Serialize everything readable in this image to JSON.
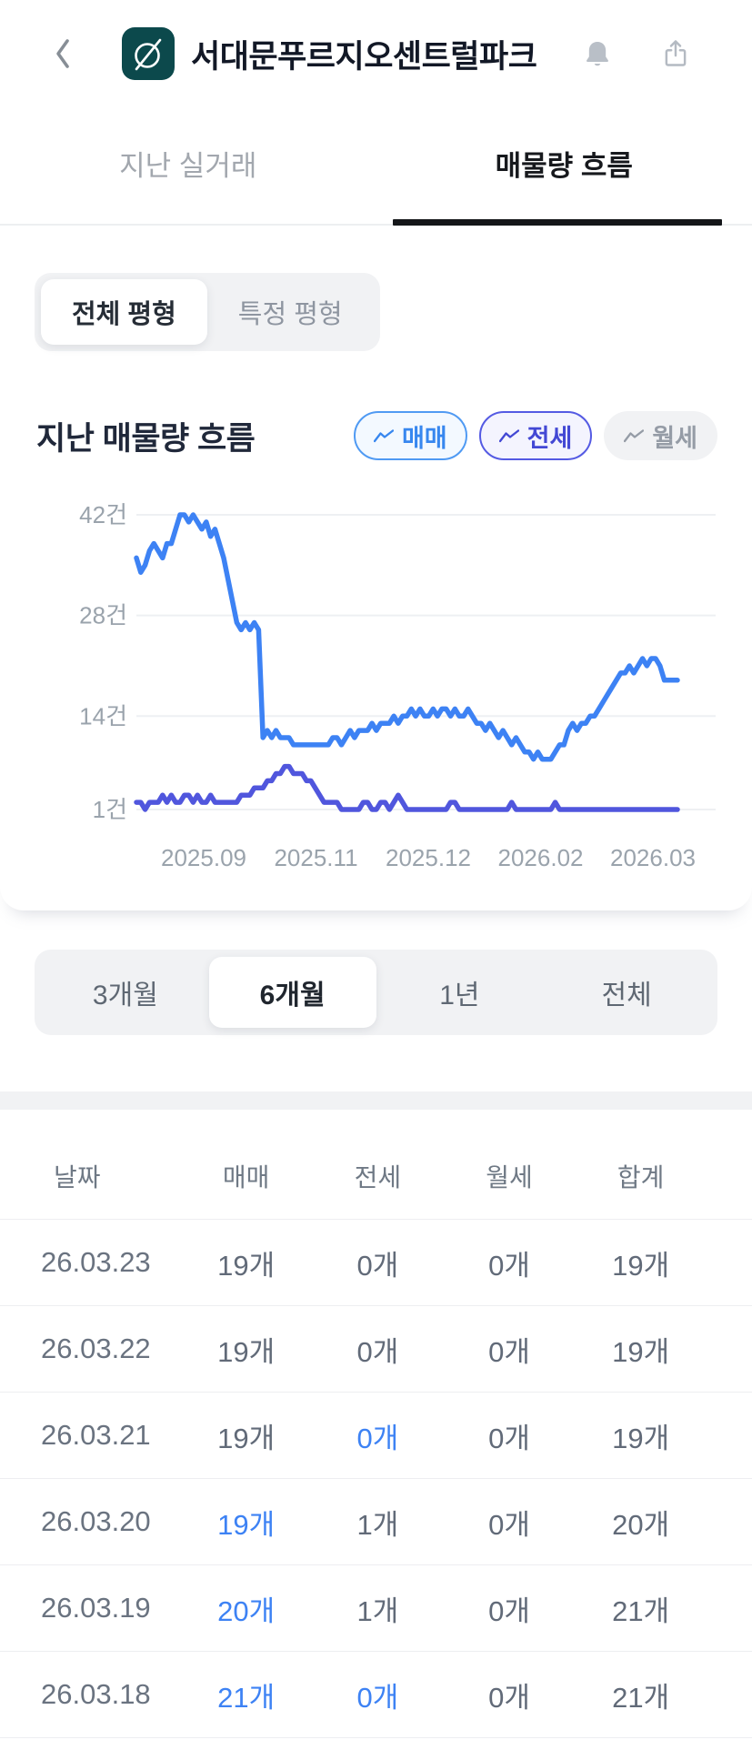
{
  "header": {
    "title": "서대문푸르지오센트럴파크"
  },
  "tabs": [
    {
      "label": "지난 실거래",
      "active": false
    },
    {
      "label": "매물량 흐름",
      "active": true
    }
  ],
  "size_filter": {
    "options": [
      {
        "label": "전체 평형",
        "selected": true
      },
      {
        "label": "특정 평형",
        "selected": false
      }
    ]
  },
  "section": {
    "title": "지난 매물량 흐름"
  },
  "legend": [
    {
      "label": "매매",
      "color": "#3787ef",
      "active": true
    },
    {
      "label": "전세",
      "color": "#4348d4",
      "active": true
    },
    {
      "label": "월세",
      "color": "#959ca6",
      "active": false
    }
  ],
  "chart_data": {
    "type": "line",
    "title": "지난 매물량 흐름",
    "unit": "건",
    "grid": "horizontal",
    "legend_position": "top-right",
    "ylim": [
      1,
      44
    ],
    "y_ticks": [
      42,
      28,
      14,
      1
    ],
    "y_tick_labels": [
      "42건",
      "28건",
      "14건",
      "1건"
    ],
    "x_tick_labels": [
      "2025.09",
      "2025.11",
      "2025.12",
      "2026.02",
      "2026.03"
    ],
    "series": [
      {
        "name": "전세",
        "color": "#5056dd",
        "values": [
          2,
          2,
          1,
          2,
          2,
          2,
          3,
          2,
          3,
          2,
          2,
          3,
          3,
          2,
          3,
          2,
          2,
          3,
          2,
          2,
          2,
          2,
          2,
          2,
          3,
          3,
          3,
          4,
          4,
          4,
          5,
          5,
          6,
          6,
          7,
          7,
          6,
          6,
          6,
          5,
          5,
          4,
          3,
          2,
          2,
          2,
          2,
          1,
          1,
          1,
          1,
          1,
          2,
          2,
          1,
          1,
          2,
          2,
          1,
          2,
          3,
          2,
          1,
          1,
          1,
          1,
          1,
          1,
          1,
          1,
          1,
          1,
          2,
          2,
          1,
          1,
          1,
          1,
          1,
          1,
          1,
          1,
          1,
          1,
          1,
          1,
          2,
          1,
          1,
          1,
          1,
          1,
          1,
          1,
          1,
          1,
          2,
          1,
          1,
          1,
          1,
          1,
          1,
          1,
          1,
          1,
          1,
          1,
          1,
          1,
          1,
          1,
          1,
          1,
          1,
          1,
          1,
          1,
          1,
          1,
          1,
          1,
          1,
          1,
          1
        ]
      },
      {
        "name": "매매",
        "color": "#3d82f4",
        "values": [
          36,
          34,
          35,
          37,
          38,
          37,
          36,
          38,
          38,
          40,
          42,
          42,
          41,
          42,
          41,
          40,
          41,
          39,
          40,
          38,
          36,
          33,
          30,
          27,
          26,
          27,
          26,
          27,
          26,
          11,
          12,
          11,
          12,
          11,
          11,
          11,
          10,
          10,
          10,
          10,
          10,
          10,
          10,
          10,
          10,
          11,
          11,
          10,
          11,
          12,
          11,
          12,
          12,
          12,
          13,
          12,
          13,
          13,
          13,
          14,
          13,
          14,
          14,
          15,
          14,
          15,
          14,
          14,
          15,
          14,
          15,
          15,
          14,
          15,
          14,
          14,
          15,
          14,
          13,
          13,
          12,
          13,
          12,
          11,
          12,
          11,
          10,
          11,
          10,
          9,
          9,
          8,
          9,
          8,
          8,
          8,
          9,
          10,
          10,
          12,
          13,
          12,
          13,
          13,
          14,
          14,
          15,
          16,
          17,
          18,
          19,
          20,
          20,
          21,
          20,
          21,
          22,
          21,
          22,
          22,
          21,
          19,
          19,
          19,
          19
        ]
      }
    ]
  },
  "range_selector": {
    "options": [
      {
        "label": "3개월",
        "selected": false
      },
      {
        "label": "6개월",
        "selected": true
      },
      {
        "label": "1년",
        "selected": false
      },
      {
        "label": "전체",
        "selected": false
      }
    ]
  },
  "table": {
    "headers": [
      "날짜",
      "매매",
      "전세",
      "월세",
      "합계"
    ],
    "rows": [
      {
        "date": "26.03.23",
        "cells": [
          [
            "19개",
            false
          ],
          [
            "0개",
            false
          ],
          [
            "0개",
            false
          ],
          [
            "19개",
            false
          ]
        ]
      },
      {
        "date": "26.03.22",
        "cells": [
          [
            "19개",
            false
          ],
          [
            "0개",
            false
          ],
          [
            "0개",
            false
          ],
          [
            "19개",
            false
          ]
        ]
      },
      {
        "date": "26.03.21",
        "cells": [
          [
            "19개",
            false
          ],
          [
            "0개",
            true
          ],
          [
            "0개",
            false
          ],
          [
            "19개",
            false
          ]
        ]
      },
      {
        "date": "26.03.20",
        "cells": [
          [
            "19개",
            true
          ],
          [
            "1개",
            false
          ],
          [
            "0개",
            false
          ],
          [
            "20개",
            false
          ]
        ]
      },
      {
        "date": "26.03.19",
        "cells": [
          [
            "20개",
            true
          ],
          [
            "1개",
            false
          ],
          [
            "0개",
            false
          ],
          [
            "21개",
            false
          ]
        ]
      },
      {
        "date": "26.03.18",
        "cells": [
          [
            "21개",
            true
          ],
          [
            "0개",
            true
          ],
          [
            "0개",
            false
          ],
          [
            "21개",
            false
          ]
        ]
      }
    ]
  }
}
